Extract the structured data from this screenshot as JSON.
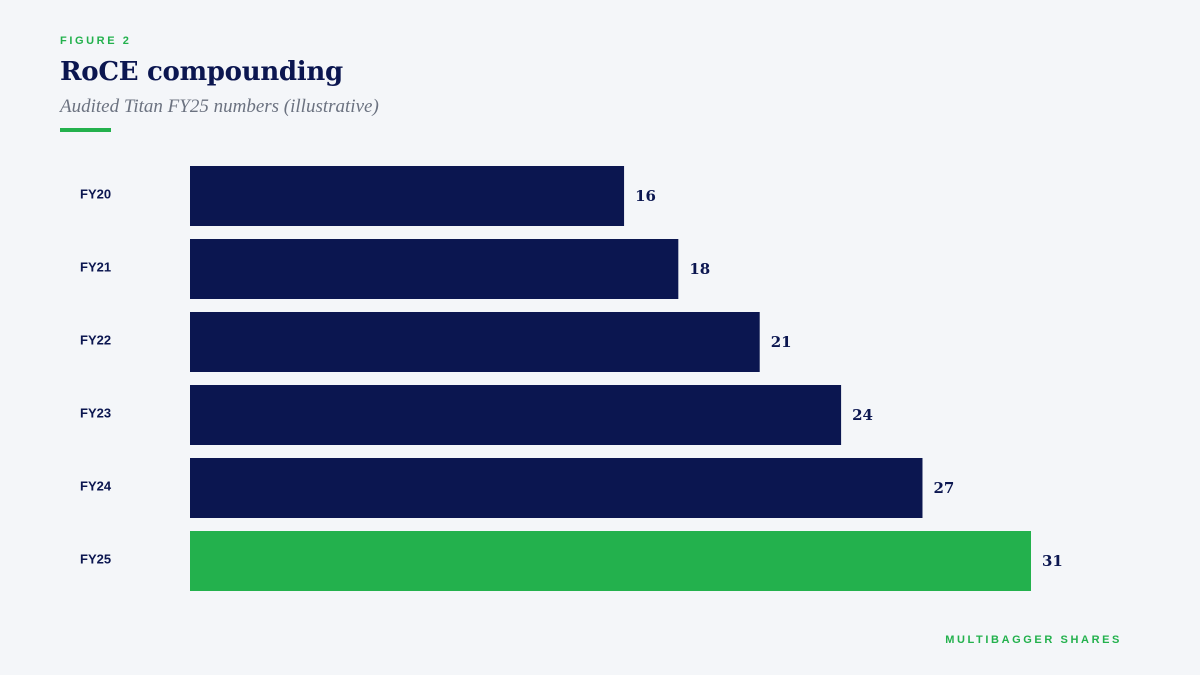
{
  "figure_label": "FIGURE 2",
  "footer_brand": "MULTIBAGGER SHARES",
  "colors": {
    "bar_default": "#0b1650",
    "bar_highlight": "#23b14d",
    "text_dark": "#0b1650",
    "accent": "#23b14d",
    "background": "#f4f6f9"
  },
  "chart_data": {
    "type": "bar",
    "orientation": "horizontal",
    "title": "RoCE compounding",
    "subtitle": "Audited Titan FY25 numbers (illustrative)",
    "xlabel": "",
    "ylabel": "",
    "categories": [
      "FY20",
      "FY21",
      "FY22",
      "FY23",
      "FY24",
      "FY25"
    ],
    "values": [
      16,
      18,
      21,
      24,
      27,
      31
    ],
    "highlight": "FY25",
    "xlim": [
      0,
      31
    ],
    "grid": false,
    "data_labels": true
  }
}
